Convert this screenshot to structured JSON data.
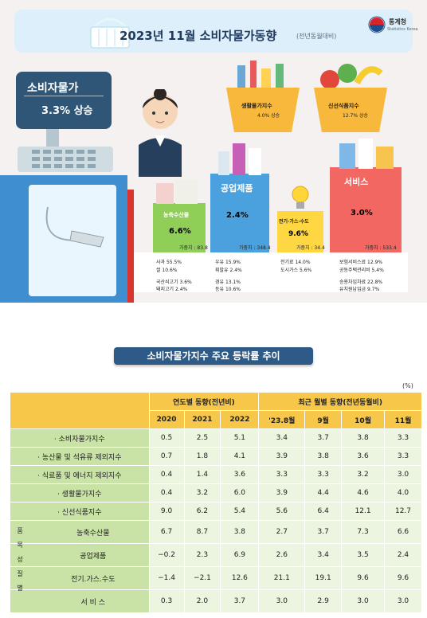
{
  "banner": {
    "title": "2023년 11월 소비자물가동향",
    "subtitle": "(전년동월대비)",
    "logo_text": "통계청",
    "logo_sub": "Statistics Korea"
  },
  "headline": {
    "label": "소비자물가",
    "value": "3.3% 상승"
  },
  "baskets": [
    {
      "label": "생활물가지수",
      "value": "4.0% 상승"
    },
    {
      "label": "신선식품지수",
      "value": "12.7% 상승"
    }
  ],
  "categories": [
    {
      "name": "농축수산물",
      "value": "6.6%",
      "weight": "가중치 : 83.8",
      "details": [
        "사과 55.5%",
        "쌀 10.6%",
        "국산쇠고기 3.6%",
        "돼지고기 2.4%"
      ]
    },
    {
      "name": "공업제품",
      "value": "2.4%",
      "weight": "가중치 : 348.4",
      "details": [
        "우유 15.9%",
        "휘발유 2.4%",
        "경유 13.1%",
        "등유 10.6%"
      ]
    },
    {
      "name": "전기·가스·수도",
      "value": "9.6%",
      "weight": "가중치 : 34.4",
      "details": [
        "전기료 14.0%",
        "도시가스 5.6%"
      ]
    },
    {
      "name": "서비스",
      "value": "3.0%",
      "weight": "가중치 : 533.4",
      "details": [
        "보험서비스료 12.9%",
        "공동주택관리비 5.4%",
        "승용차임차료 22.8%",
        "유치원납입금 9.7%"
      ]
    }
  ],
  "chart_data": {
    "type": "table",
    "title": "소비자물가지수 주요 등락률 추이",
    "unit": "(%)",
    "column_groups": [
      {
        "label": "연도별 동향(전년비)",
        "columns": [
          "2020",
          "2021",
          "2022"
        ]
      },
      {
        "label": "최근 월별 동향(전년동월비)",
        "columns": [
          "'23.8월",
          "9월",
          "10월",
          "11월"
        ]
      }
    ],
    "group_label": "품목성질별",
    "rows": [
      {
        "label": "소비자물가지수",
        "values": [
          "0.5",
          "2.5",
          "5.1",
          "3.4",
          "3.7",
          "3.8",
          "3.3"
        ]
      },
      {
        "label": "농산물 및 석유류 제외지수",
        "values": [
          "0.7",
          "1.8",
          "4.1",
          "3.9",
          "3.8",
          "3.6",
          "3.3"
        ]
      },
      {
        "label": "식료품 및 에너지 제외지수",
        "values": [
          "0.4",
          "1.4",
          "3.6",
          "3.3",
          "3.3",
          "3.2",
          "3.0"
        ]
      },
      {
        "label": "생활물가지수",
        "values": [
          "0.4",
          "3.2",
          "6.0",
          "3.9",
          "4.4",
          "4.6",
          "4.0"
        ]
      },
      {
        "label": "신선식품지수",
        "values": [
          "9.0",
          "6.2",
          "5.4",
          "5.6",
          "6.4",
          "12.1",
          "12.7"
        ]
      },
      {
        "label": "농축수산물",
        "values": [
          "6.7",
          "8.7",
          "3.8",
          "2.7",
          "3.7",
          "7.3",
          "6.6"
        ]
      },
      {
        "label": "공업제품",
        "values": [
          "−0.2",
          "2.3",
          "6.9",
          "2.6",
          "3.4",
          "3.5",
          "2.4"
        ]
      },
      {
        "label": "전기.가스.수도",
        "values": [
          "−1.4",
          "−2.1",
          "12.6",
          "21.1",
          "19.1",
          "9.6",
          "9.6"
        ]
      },
      {
        "label": "서 비 스",
        "values": [
          "0.3",
          "2.0",
          "3.7",
          "3.0",
          "2.9",
          "3.0",
          "3.0"
        ]
      }
    ]
  }
}
